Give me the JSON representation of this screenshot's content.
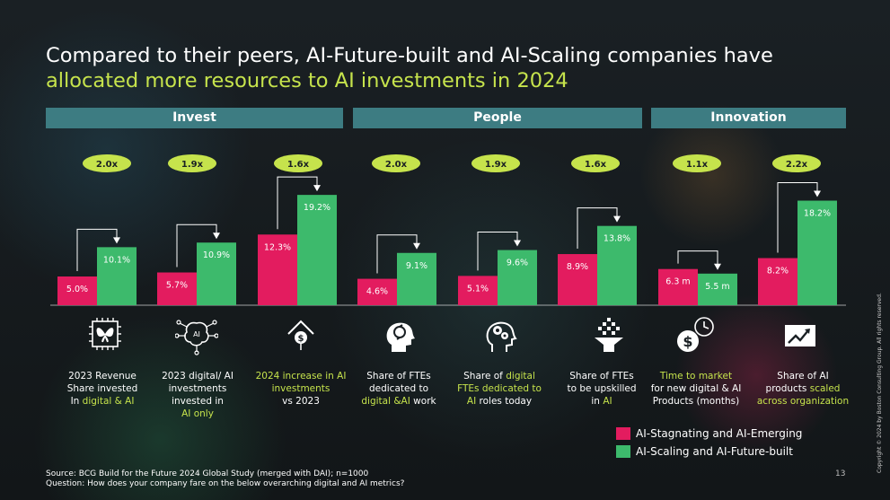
{
  "title": {
    "line1": "Compared to their peers, AI-Future-built and AI-Scaling  companies have",
    "line2": "allocated more resources to AI investments in 2024"
  },
  "sections": [
    {
      "label": "Invest"
    },
    {
      "label": "People"
    },
    {
      "label": "Innovation"
    }
  ],
  "colors": {
    "pink": "#e31c5f",
    "green": "#3dba6c",
    "ratio_badge": "#c6e34c",
    "section_bg": "#3d7c82",
    "highlight_text": "#c6e34c"
  },
  "chart_data": {
    "type": "bar",
    "categories": [
      "2023 Revenue Share invested In digital & AI",
      "2023 digital/ AI investments invested in AI only",
      "2024 increase in AI investments vs 2023",
      "Share of FTEs dedicated to digital &AI work",
      "Share of digital FTEs dedicated to AI roles today",
      "Share of FTEs to be upskilled in AI",
      "Time to market for new digital & AI Products (months)",
      "Share of AI products scaled across organization"
    ],
    "series": [
      {
        "name": "AI-Stagnating and AI-Emerging",
        "values": [
          5.0,
          5.7,
          12.3,
          4.6,
          5.1,
          8.9,
          6.3,
          8.2
        ],
        "labels": [
          "5.0%",
          "5.7%",
          "12.3%",
          "4.6%",
          "5.1%",
          "8.9%",
          "6.3 m",
          "8.2%"
        ]
      },
      {
        "name": "AI-Scaling and AI-Future-built",
        "values": [
          10.1,
          10.9,
          19.2,
          9.1,
          9.6,
          13.8,
          5.5,
          18.2
        ],
        "labels": [
          "10.1%",
          "10.9%",
          "19.2%",
          "9.1%",
          "9.6%",
          "13.8%",
          "5.5 m",
          "18.2%"
        ]
      }
    ],
    "ratios": [
      "2.0x",
      "1.9x",
      "1.6x",
      "2.0x",
      "1.9x",
      "1.6x",
      "1.1x",
      "2.2x"
    ]
  },
  "labels": [
    {
      "parts": [
        {
          "t": "2023 Revenue",
          "h": false,
          "br": true
        },
        {
          "t": "Share invested",
          "h": false,
          "br": true
        },
        {
          "t": "In ",
          "h": false
        },
        {
          "t": "digital & AI",
          "h": true
        }
      ]
    },
    {
      "parts": [
        {
          "t": "2023 digital/ AI",
          "h": false,
          "br": true
        },
        {
          "t": "investments",
          "h": false,
          "br": true
        },
        {
          "t": "invested in",
          "h": false,
          "br": true
        },
        {
          "t": "AI only",
          "h": true
        }
      ]
    },
    {
      "parts": [
        {
          "t": "2024 increase in AI",
          "h": true,
          "br": true
        },
        {
          "t": "investments",
          "h": true,
          "br": true
        },
        {
          "t": "vs 2023",
          "h": false
        }
      ]
    },
    {
      "parts": [
        {
          "t": "Share of FTEs",
          "h": false,
          "br": true
        },
        {
          "t": "dedicated to",
          "h": false,
          "br": true
        },
        {
          "t": "digital &AI",
          "h": true
        },
        {
          "t": " work",
          "h": false
        }
      ]
    },
    {
      "parts": [
        {
          "t": "Share of ",
          "h": false
        },
        {
          "t": "digital",
          "h": true,
          "br": true
        },
        {
          "t": "FTEs dedicated to",
          "h": true,
          "br": true
        },
        {
          "t": "AI",
          "h": true
        },
        {
          "t": " roles today",
          "h": false
        }
      ]
    },
    {
      "parts": [
        {
          "t": "Share of FTEs",
          "h": false,
          "br": true
        },
        {
          "t": "to be upskilled",
          "h": false,
          "br": true
        },
        {
          "t": "in ",
          "h": false
        },
        {
          "t": "AI",
          "h": true
        }
      ]
    },
    {
      "parts": [
        {
          "t": "Time to market",
          "h": true,
          "br": true
        },
        {
          "t": "for new digital & AI",
          "h": false,
          "br": true
        },
        {
          "t": "Products (months)",
          "h": false
        }
      ]
    },
    {
      "parts": [
        {
          "t": "Share of AI",
          "h": false,
          "br": true
        },
        {
          "t": "products ",
          "h": false
        },
        {
          "t": "scaled",
          "h": true,
          "br": true
        },
        {
          "t": "across organization",
          "h": true
        }
      ]
    }
  ],
  "icons": [
    "butterfly-chip-icon",
    "ai-brain-icon",
    "dollar-growth-icon",
    "head-cycle-icon",
    "head-gears-icon",
    "upskill-funnel-icon",
    "time-money-icon",
    "trend-up-icon"
  ],
  "legend": [
    {
      "label": "AI-Stagnating and AI-Emerging"
    },
    {
      "label": "AI-Scaling and AI-Future-built"
    }
  ],
  "source": {
    "line1": "Source:  BCG Build for the Future 2024 Global Study (merged with DAI); n=1000",
    "line2": "Question: How does your company fare on the below overarching digital and AI metrics?"
  },
  "page_number": "13",
  "copyright": "Copyright © 2024 by Boston Consulting Group. All rights reserved."
}
